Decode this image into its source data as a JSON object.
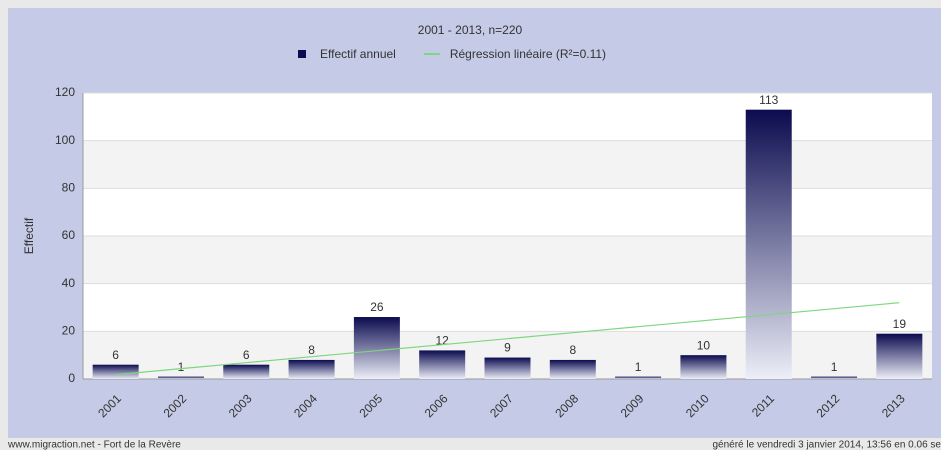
{
  "chart_data": {
    "type": "bar",
    "title": "2001 - 2013, n=220",
    "ylabel": "Effectif",
    "categories": [
      "2001",
      "2002",
      "2003",
      "2004",
      "2005",
      "2006",
      "2007",
      "2008",
      "2009",
      "2010",
      "2011",
      "2012",
      "2013"
    ],
    "series": [
      {
        "name": "Effectif annuel",
        "type": "bar",
        "color": "#0b0b4f",
        "values": [
          6,
          1,
          6,
          8,
          26,
          12,
          9,
          8,
          1,
          10,
          113,
          1,
          19
        ]
      },
      {
        "name": "Régression linéaire (R²=0.11)",
        "type": "line",
        "color": "#7ed67e",
        "values": [
          1.82,
          4.34,
          6.85,
          9.37,
          11.89,
          14.4,
          16.92,
          19.44,
          21.96,
          24.47,
          26.99,
          29.51,
          32.02
        ]
      }
    ],
    "ylim": [
      0,
      120
    ],
    "yticks": [
      0,
      20,
      40,
      60,
      80,
      100,
      120
    ],
    "grid": true
  },
  "footer": {
    "left": "www.migraction.net - Fort de la Revère",
    "right": "généré le vendredi 3 janvier 2014, 13:56 en 0.06 se"
  }
}
